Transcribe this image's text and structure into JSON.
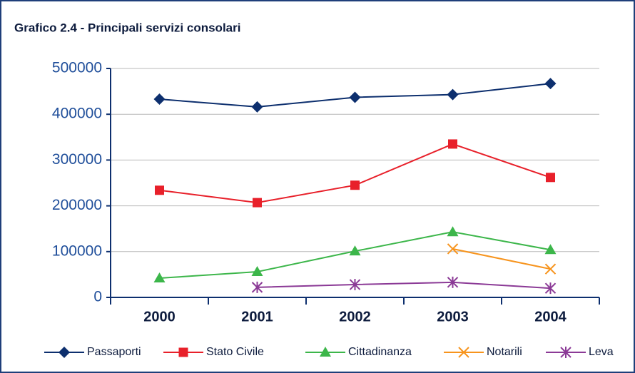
{
  "chart_data": {
    "type": "line",
    "title": "Grafico 2.4 - Principali servizi consolari",
    "categories": [
      "2000",
      "2001",
      "2002",
      "2003",
      "2004"
    ],
    "series": [
      {
        "name": "Passaporti",
        "color": "#0d2f6e",
        "marker": "diamond",
        "values": [
          433000,
          416000,
          437000,
          443000,
          467000
        ]
      },
      {
        "name": "Stato Civile",
        "color": "#e8202a",
        "marker": "square",
        "values": [
          234000,
          207000,
          245000,
          335000,
          262000
        ]
      },
      {
        "name": "Cittadinanza",
        "color": "#3cb64a",
        "marker": "triangle",
        "values": [
          42000,
          56000,
          101000,
          143000,
          104000
        ]
      },
      {
        "name": "Notarili",
        "color": "#f7941d",
        "marker": "x",
        "values": [
          null,
          null,
          null,
          106000,
          62000
        ]
      },
      {
        "name": "Leva",
        "color": "#8b3a96",
        "marker": "asterisk",
        "values": [
          null,
          22000,
          28000,
          33000,
          20000
        ]
      }
    ],
    "ylim": [
      0,
      500000
    ],
    "yticks": [
      0,
      100000,
      200000,
      300000,
      400000,
      500000
    ],
    "grid": true,
    "legend": "bottom"
  }
}
